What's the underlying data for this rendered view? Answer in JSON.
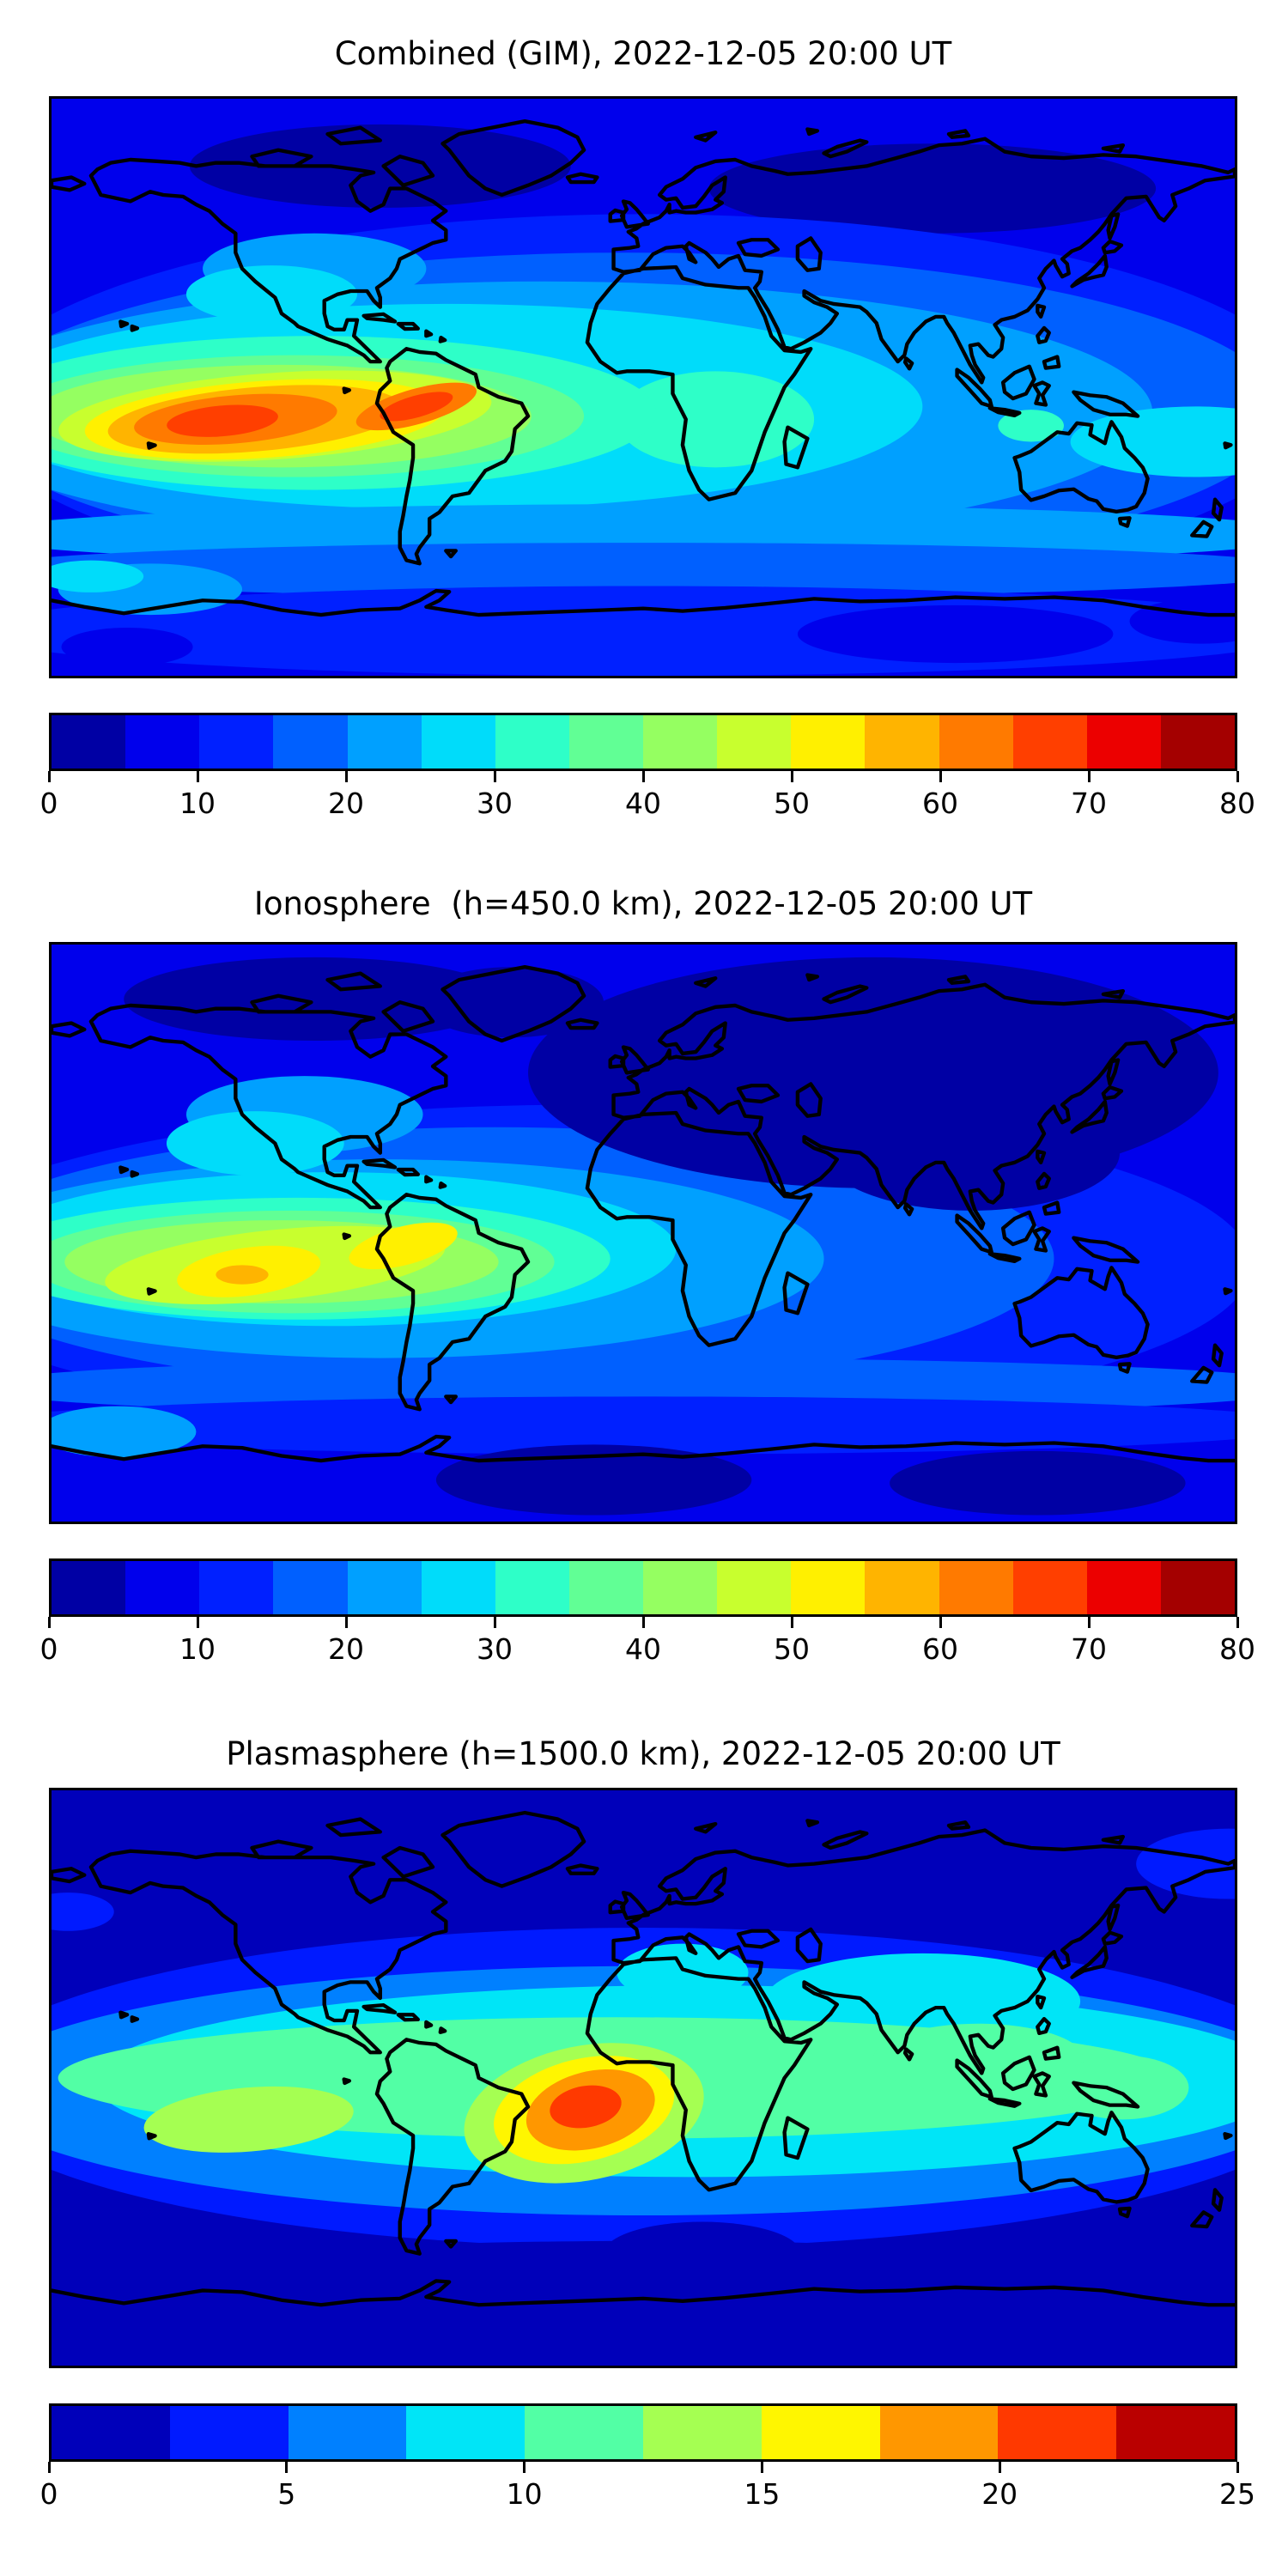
{
  "figure": {
    "background": "#ffffff",
    "type": "scientific figure with three stacked global TEC contour maps",
    "n_panels": 3
  },
  "chart_data": [
    {
      "type": "filled_contour_map",
      "title": "Combined (GIM), 2022-12-05 20:00 UT",
      "projection": "equirectangular",
      "lon_range": [
        -180,
        180
      ],
      "lat_range": [
        -90,
        90
      ],
      "value_range": [
        0,
        80
      ],
      "level_step": 5,
      "n_color_levels": 16,
      "colorbar_ticks": [
        0,
        10,
        20,
        30,
        40,
        50,
        60,
        70,
        80
      ],
      "colorbar_orientation": "horizontal",
      "palette": [
        "#0000A4",
        "#0000EC",
        "#0020FF",
        "#0060FF",
        "#00A0FF",
        "#00DCFA",
        "#2EFFC8",
        "#61FF95",
        "#95FF61",
        "#C8FF2E",
        "#FFF000",
        "#FFB400",
        "#FF7A00",
        "#FF3F00",
        "#EC0000",
        "#A40000"
      ],
      "base_level": 1,
      "coastline_color": "#000000",
      "notable_features": [
        {
          "feature": "equatorial-anomaly-peak-east-pacific",
          "lon": -125,
          "lat": -10,
          "approx_value": 68
        },
        {
          "feature": "secondary-peak-northern-south-america",
          "lon": -69,
          "lat": -6,
          "approx_value": 67
        },
        {
          "feature": "africa-equatorial-enhancement",
          "lon": 20,
          "lat": -10,
          "approx_value": 33
        },
        {
          "feature": "minimum-high-northern-latitudes",
          "approx_value": "0-10"
        }
      ],
      "field_blobs": [
        [
          -80,
          69,
          58,
          13,
          0,
          0
        ],
        [
          88,
          62,
          68,
          14,
          0,
          0
        ],
        [
          0,
          -6,
          205,
          60,
          0,
          2
        ],
        [
          -5,
          -8,
          200,
          50,
          0,
          3
        ],
        [
          -30,
          -8,
          185,
          41,
          0,
          4
        ],
        [
          -100,
          37,
          34,
          11,
          0,
          4
        ],
        [
          -60,
          -6,
          145,
          32,
          0,
          5
        ],
        [
          -113,
          29,
          26,
          9,
          0,
          5
        ],
        [
          168,
          -17,
          38,
          11,
          0,
          5
        ],
        [
          22,
          -10,
          30,
          15,
          0,
          6
        ],
        [
          118,
          -12,
          10,
          5,
          0,
          6
        ],
        [
          -100,
          -8,
          104,
          24,
          0,
          6
        ],
        [
          -106,
          -9,
          88,
          19,
          0,
          7
        ],
        [
          -110,
          -9,
          76,
          16,
          0,
          8
        ],
        [
          -112,
          -9,
          66,
          13.5,
          -4,
          9
        ],
        [
          -115,
          -10,
          55,
          12,
          -4,
          10
        ],
        [
          -118,
          -10,
          45,
          10,
          -5,
          11
        ],
        [
          -124,
          -10,
          31,
          7.5,
          -5,
          12
        ],
        [
          -69,
          -6,
          19,
          5.5,
          -16,
          12
        ],
        [
          -128,
          -10.5,
          17,
          4.8,
          -5,
          13
        ],
        [
          -69,
          -6,
          11.5,
          3.4,
          -16,
          13
        ],
        [
          0,
          -46,
          205,
          9.5,
          0,
          4
        ],
        [
          0,
          -57,
          205,
          8.5,
          0,
          3
        ],
        [
          0,
          -76,
          205,
          14,
          0,
          2
        ],
        [
          95,
          -77,
          48,
          9,
          0,
          1
        ],
        [
          170,
          -73,
          22,
          7,
          0,
          1
        ],
        [
          -157,
          -81,
          20,
          6,
          0,
          1
        ],
        [
          -150,
          -63,
          28,
          8,
          0,
          4
        ],
        [
          -168,
          -59,
          16,
          5,
          0,
          5
        ]
      ]
    },
    {
      "type": "filled_contour_map",
      "title": "Ionosphere  (h=450.0 km), 2022-12-05 20:00 UT",
      "projection": "equirectangular",
      "lon_range": [
        -180,
        180
      ],
      "lat_range": [
        -90,
        90
      ],
      "value_range": [
        0,
        80
      ],
      "level_step": 5,
      "n_color_levels": 16,
      "colorbar_ticks": [
        0,
        10,
        20,
        30,
        40,
        50,
        60,
        70,
        80
      ],
      "colorbar_orientation": "horizontal",
      "palette": [
        "#0000A4",
        "#0000EC",
        "#0020FF",
        "#0060FF",
        "#00A0FF",
        "#00DCFA",
        "#2EFFC8",
        "#61FF95",
        "#95FF61",
        "#C8FF2E",
        "#FFF000",
        "#FFB400",
        "#FF7A00",
        "#FF3F00",
        "#EC0000",
        "#A40000"
      ],
      "base_level": 1,
      "coastline_color": "#000000",
      "notable_features": [
        {
          "feature": "peak-east-pacific",
          "lon": -122,
          "lat": -13,
          "approx_value": 57
        },
        {
          "feature": "secondary-peak-nw-south-america",
          "lon": -73,
          "lat": -4,
          "approx_value": 52
        },
        {
          "feature": "minimum-eurasia",
          "approx_value": "0-5"
        }
      ],
      "field_blobs": [
        [
          -20,
          -10,
          205,
          50,
          0,
          2
        ],
        [
          -45,
          -8,
          170,
          41,
          0,
          3
        ],
        [
          70,
          50,
          105,
          36,
          0,
          0
        ],
        [
          100,
          25,
          45,
          18,
          0,
          0
        ],
        [
          -100,
          73,
          58,
          13,
          0,
          0
        ],
        [
          -40,
          72,
          28,
          11,
          0,
          0
        ],
        [
          -80,
          -8,
          135,
          31,
          0,
          4
        ],
        [
          -103,
          37,
          36,
          12,
          0,
          4
        ],
        [
          -95,
          -5,
          105,
          24,
          0,
          5
        ],
        [
          -118,
          28,
          27,
          10,
          0,
          5
        ],
        [
          -22,
          3,
          4,
          2.5,
          0,
          5
        ],
        [
          -105,
          -8,
          95,
          19,
          0,
          6
        ],
        [
          -107,
          -9,
          80,
          16,
          0,
          7
        ],
        [
          -110,
          -9,
          66,
          13,
          0,
          8
        ],
        [
          -112,
          -10,
          52,
          11,
          -6,
          9
        ],
        [
          -120,
          -12,
          22,
          7.5,
          -8,
          10
        ],
        [
          -73,
          -4,
          17,
          6,
          -15,
          10
        ],
        [
          -122,
          -13,
          8,
          3,
          0,
          11
        ],
        [
          0,
          -48,
          205,
          9,
          0,
          3
        ],
        [
          0,
          -60,
          205,
          9,
          0,
          2
        ],
        [
          -15,
          -77,
          48,
          11,
          0,
          0
        ],
        [
          120,
          -78,
          45,
          10,
          0,
          0
        ],
        [
          -160,
          -62,
          24,
          8,
          0,
          4
        ]
      ]
    },
    {
      "type": "filled_contour_map",
      "title": "Plasmasphere (h=1500.0 km), 2022-12-05 20:00 UT",
      "projection": "equirectangular",
      "lon_range": [
        -180,
        180
      ],
      "lat_range": [
        -90,
        90
      ],
      "value_range": [
        0,
        25
      ],
      "level_step": 2.5,
      "n_color_levels": 10,
      "colorbar_ticks": [
        0,
        5,
        10,
        15,
        20,
        25
      ],
      "colorbar_orientation": "horizontal",
      "palette": [
        "#0000BA",
        "#001AFF",
        "#0080FF",
        "#00E5F7",
        "#52FFA5",
        "#A5FF52",
        "#FFF600",
        "#FF9700",
        "#FF3900",
        "#BA0000"
      ],
      "base_level": 0,
      "coastline_color": "#000000",
      "notable_features": [
        {
          "feature": "peak-west-africa-atlantic",
          "lon": -17,
          "lat": -9,
          "approx_value": 21
        },
        {
          "feature": "secondary-max-central-pacific",
          "lon": -120,
          "lat": -13,
          "approx_value": 14
        },
        {
          "feature": "minimum-polar-caps",
          "approx_value": "0-2.5"
        }
      ],
      "field_blobs": [
        [
          178,
          67,
          28,
          11,
          0,
          1
        ],
        [
          -175,
          52,
          14,
          6,
          0,
          1
        ],
        [
          0,
          -3,
          210,
          50,
          0,
          1
        ],
        [
          0,
          -4,
          205,
          39,
          0,
          2
        ],
        [
          15,
          -1,
          182,
          30,
          0,
          3
        ],
        [
          85,
          24,
          48,
          15,
          0,
          3
        ],
        [
          12,
          33,
          20,
          9,
          0,
          3
        ],
        [
          -8,
          0,
          170,
          19,
          0,
          4
        ],
        [
          102,
          6,
          32,
          11,
          0,
          4
        ],
        [
          146,
          -3,
          20,
          10,
          0,
          4
        ],
        [
          -120,
          -13,
          32,
          10,
          -5,
          5
        ],
        [
          -18,
          -11,
          37,
          21,
          -12,
          5
        ],
        [
          -18,
          -10,
          28,
          16,
          -14,
          6
        ],
        [
          -16,
          -10,
          20,
          12,
          -15,
          7
        ],
        [
          -17.5,
          -9,
          11,
          6.5,
          -10,
          8
        ],
        [
          0,
          -71,
          210,
          20,
          0,
          0
        ],
        [
          18,
          -55,
          30,
          10,
          0,
          0
        ]
      ]
    }
  ]
}
